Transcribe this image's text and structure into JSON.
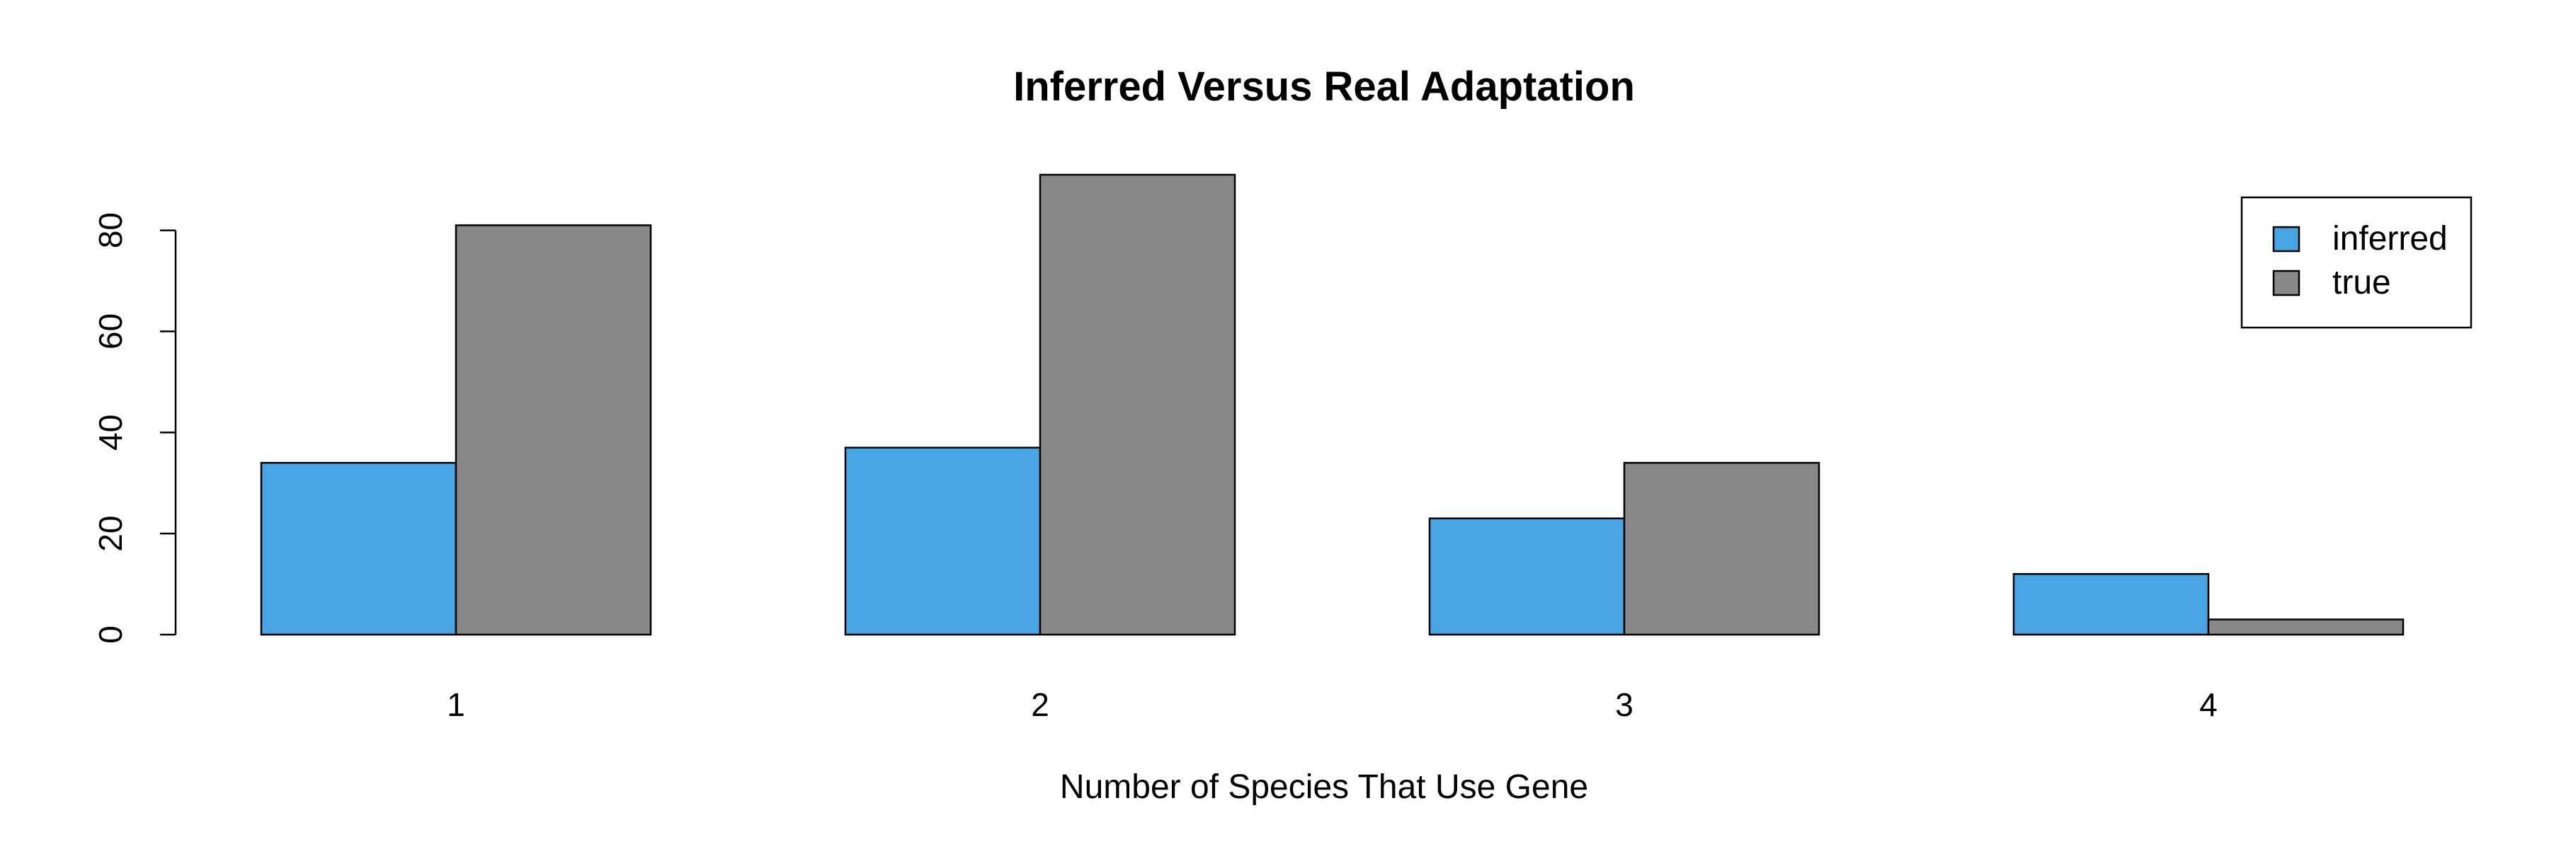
{
  "chart_data": {
    "type": "bar",
    "title": "Inferred Versus Real Adaptation",
    "xlabel": "Number of Species That Use Gene",
    "ylabel": "",
    "categories": [
      "1",
      "2",
      "3",
      "4"
    ],
    "series": [
      {
        "name": "inferred",
        "color": "#49a4e3",
        "values": [
          34,
          37,
          23,
          12
        ]
      },
      {
        "name": "true",
        "color": "#888888",
        "values": [
          81,
          91,
          34,
          3
        ]
      }
    ],
    "ylim": [
      0,
      91
    ],
    "yticks": [
      "0",
      "20",
      "40",
      "60",
      "80"
    ],
    "legend": {
      "position": "top-right",
      "entries": [
        "inferred",
        "true"
      ]
    },
    "grid": false
  }
}
